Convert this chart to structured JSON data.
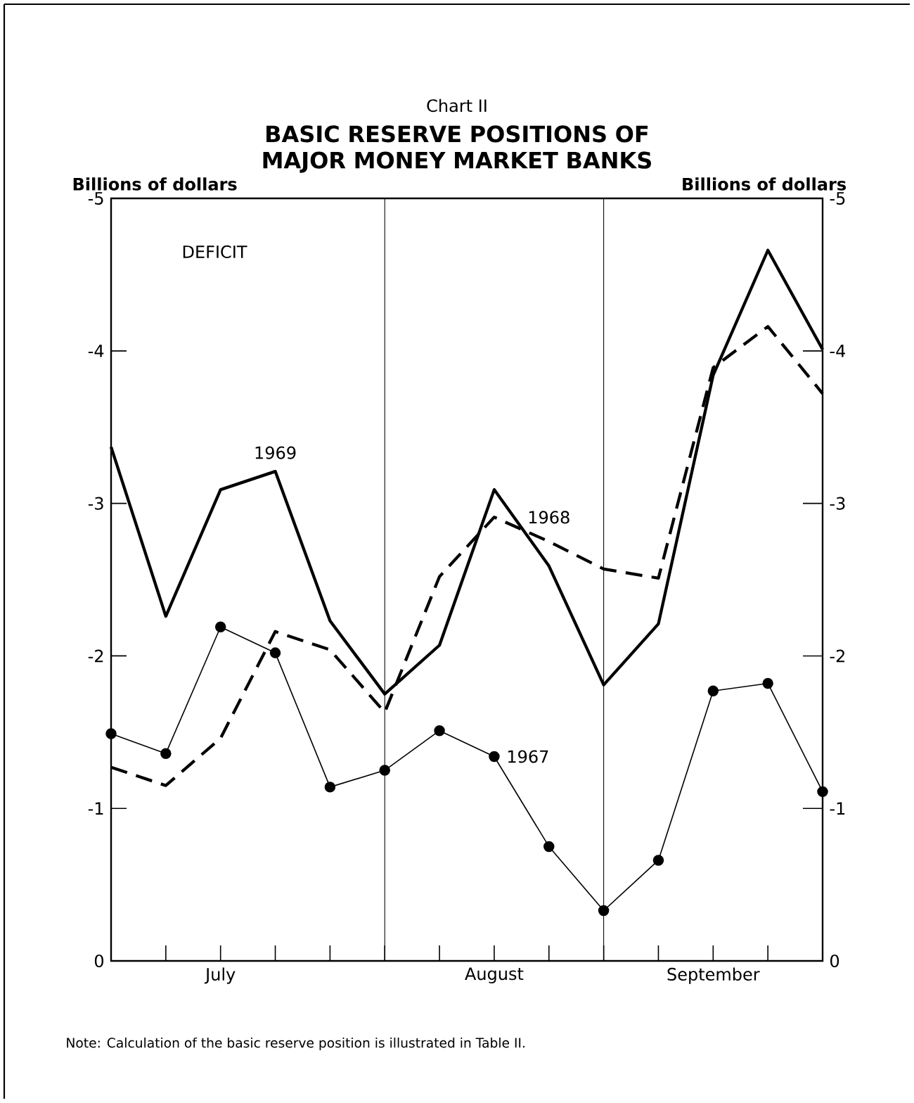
{
  "chart_data": {
    "type": "line",
    "title": "Chart II",
    "subtitle": "BASIC RESERVE POSITIONS OF MAJOR MONEY MARKET BANKS",
    "ylabel": "Billions of dollars",
    "y2label": "Billions of dollars",
    "categories": [
      null,
      null,
      "July",
      null,
      null,
      null,
      null,
      "August",
      null,
      null,
      null,
      "September",
      null,
      null
    ],
    "ylim": [
      0,
      -5
    ],
    "yticks": [
      0,
      -1,
      -2,
      -3,
      -4,
      -5
    ],
    "y2lim": [
      0,
      -5
    ],
    "y2ticks": [
      0,
      -1,
      -2,
      -3,
      -4,
      -5
    ],
    "series": [
      {
        "name": "1969",
        "color": "#000000",
        "line_style": "solid",
        "marker": "none",
        "values": [
          -3.37,
          -2.26,
          -3.09,
          -3.21,
          -2.23,
          -1.75,
          -2.07,
          -3.09,
          -2.59,
          -1.81,
          -2.21,
          -3.84,
          -4.66,
          -4.01
        ]
      },
      {
        "name": "1968",
        "color": "#000000",
        "line_style": "dashed",
        "marker": "none",
        "values": [
          -1.27,
          -1.15,
          -1.46,
          -2.16,
          -2.04,
          -1.63,
          -2.52,
          -2.91,
          -2.75,
          -2.57,
          -2.51,
          -3.89,
          -4.16,
          -3.72
        ]
      },
      {
        "name": "1967",
        "color": "#000000",
        "line_style": "solid",
        "marker": "circle",
        "values": [
          -1.49,
          -1.36,
          -2.19,
          -2.02,
          -1.14,
          -1.25,
          -1.51,
          -1.34,
          -0.75,
          -0.33,
          -0.66,
          -1.77,
          -1.82,
          -1.11
        ]
      }
    ],
    "annotations": [
      "DEFICIT",
      "Note: Calculation of the basic reserve position is illustrated in Table II."
    ]
  }
}
